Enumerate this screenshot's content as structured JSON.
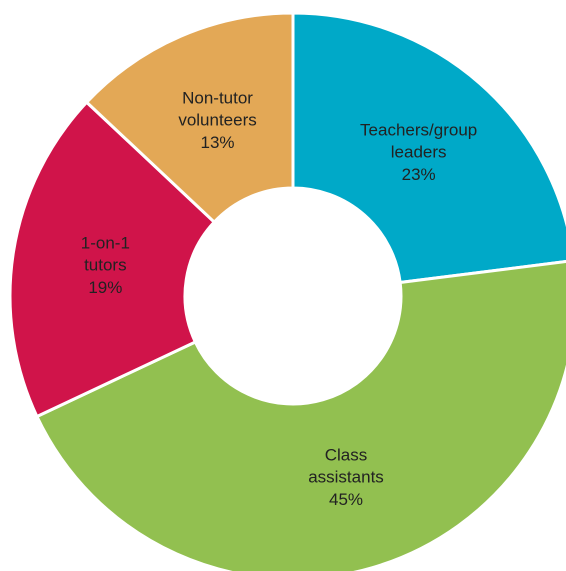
{
  "chart_data": {
    "type": "donut",
    "categories": [
      "Teachers/group leaders",
      "Class assistants",
      "1-on-1 tutors",
      "Non-tutor volunteers"
    ],
    "values": [
      23,
      45,
      19,
      13
    ],
    "value_labels": [
      "23%",
      "45%",
      "19%",
      "13%"
    ],
    "colors": [
      "#00a9c8",
      "#92c050",
      "#d0144a",
      "#e3a856"
    ]
  }
}
